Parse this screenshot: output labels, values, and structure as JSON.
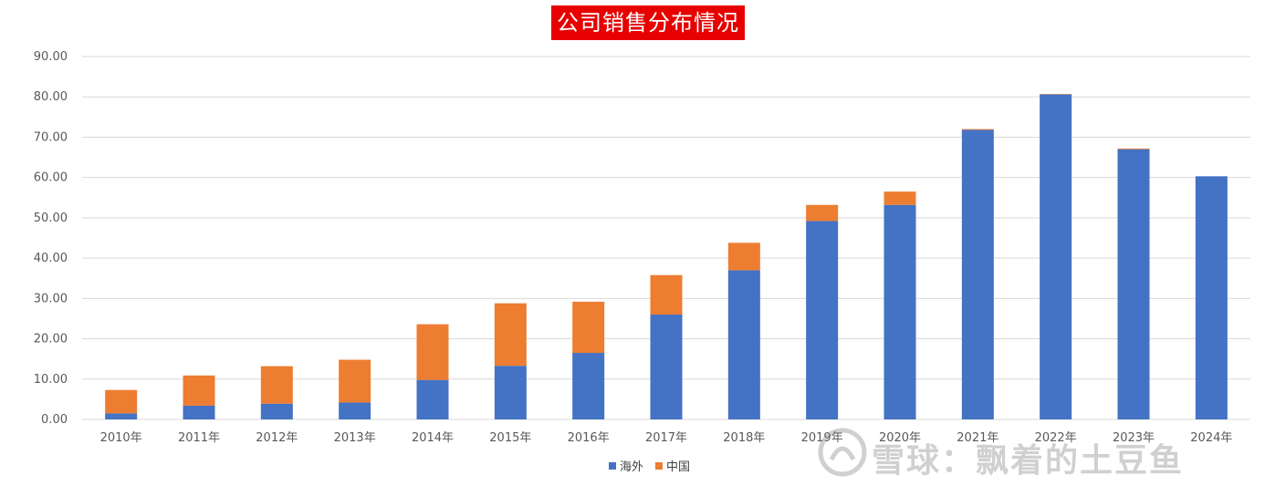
{
  "title": "公司销售分布情况",
  "watermark": {
    "text": "雪球：飘着的土豆鱼",
    "logo_icon": "snowball-logo-icon"
  },
  "colors": {
    "overseas": "#4472c4",
    "china": "#ed7d31",
    "grid": "#d9d9d9",
    "title_bg": "#e60000"
  },
  "chart_data": {
    "type": "bar",
    "stacked": true,
    "title": "公司销售分布情况",
    "categories": [
      "2010年",
      "2011年",
      "2012年",
      "2013年",
      "2014年",
      "2015年",
      "2016年",
      "2017年",
      "2018年",
      "2019年",
      "2020年",
      "2021年",
      "2022年",
      "2023年",
      "2024年"
    ],
    "series": [
      {
        "name": "海外",
        "color": "#4472c4",
        "values": [
          1.5,
          3.4,
          3.9,
          4.2,
          9.8,
          13.3,
          16.5,
          26.0,
          37.0,
          49.2,
          53.2,
          71.8,
          80.6,
          67.0,
          60.3
        ]
      },
      {
        "name": "中国",
        "color": "#ed7d31",
        "values": [
          5.8,
          7.5,
          9.3,
          10.6,
          13.8,
          15.5,
          12.7,
          9.8,
          6.8,
          4.0,
          3.3,
          0.2,
          0.1,
          0.2,
          0.0
        ]
      }
    ],
    "ylim": [
      0,
      90
    ],
    "yticks": [
      "0.00",
      "10.00",
      "20.00",
      "30.00",
      "40.00",
      "50.00",
      "60.00",
      "70.00",
      "80.00",
      "90.00"
    ],
    "ytick_values": [
      0,
      10,
      20,
      30,
      40,
      50,
      60,
      70,
      80,
      90
    ],
    "xlabel": "",
    "ylabel": "",
    "grid": true,
    "legend_position": "bottom"
  }
}
